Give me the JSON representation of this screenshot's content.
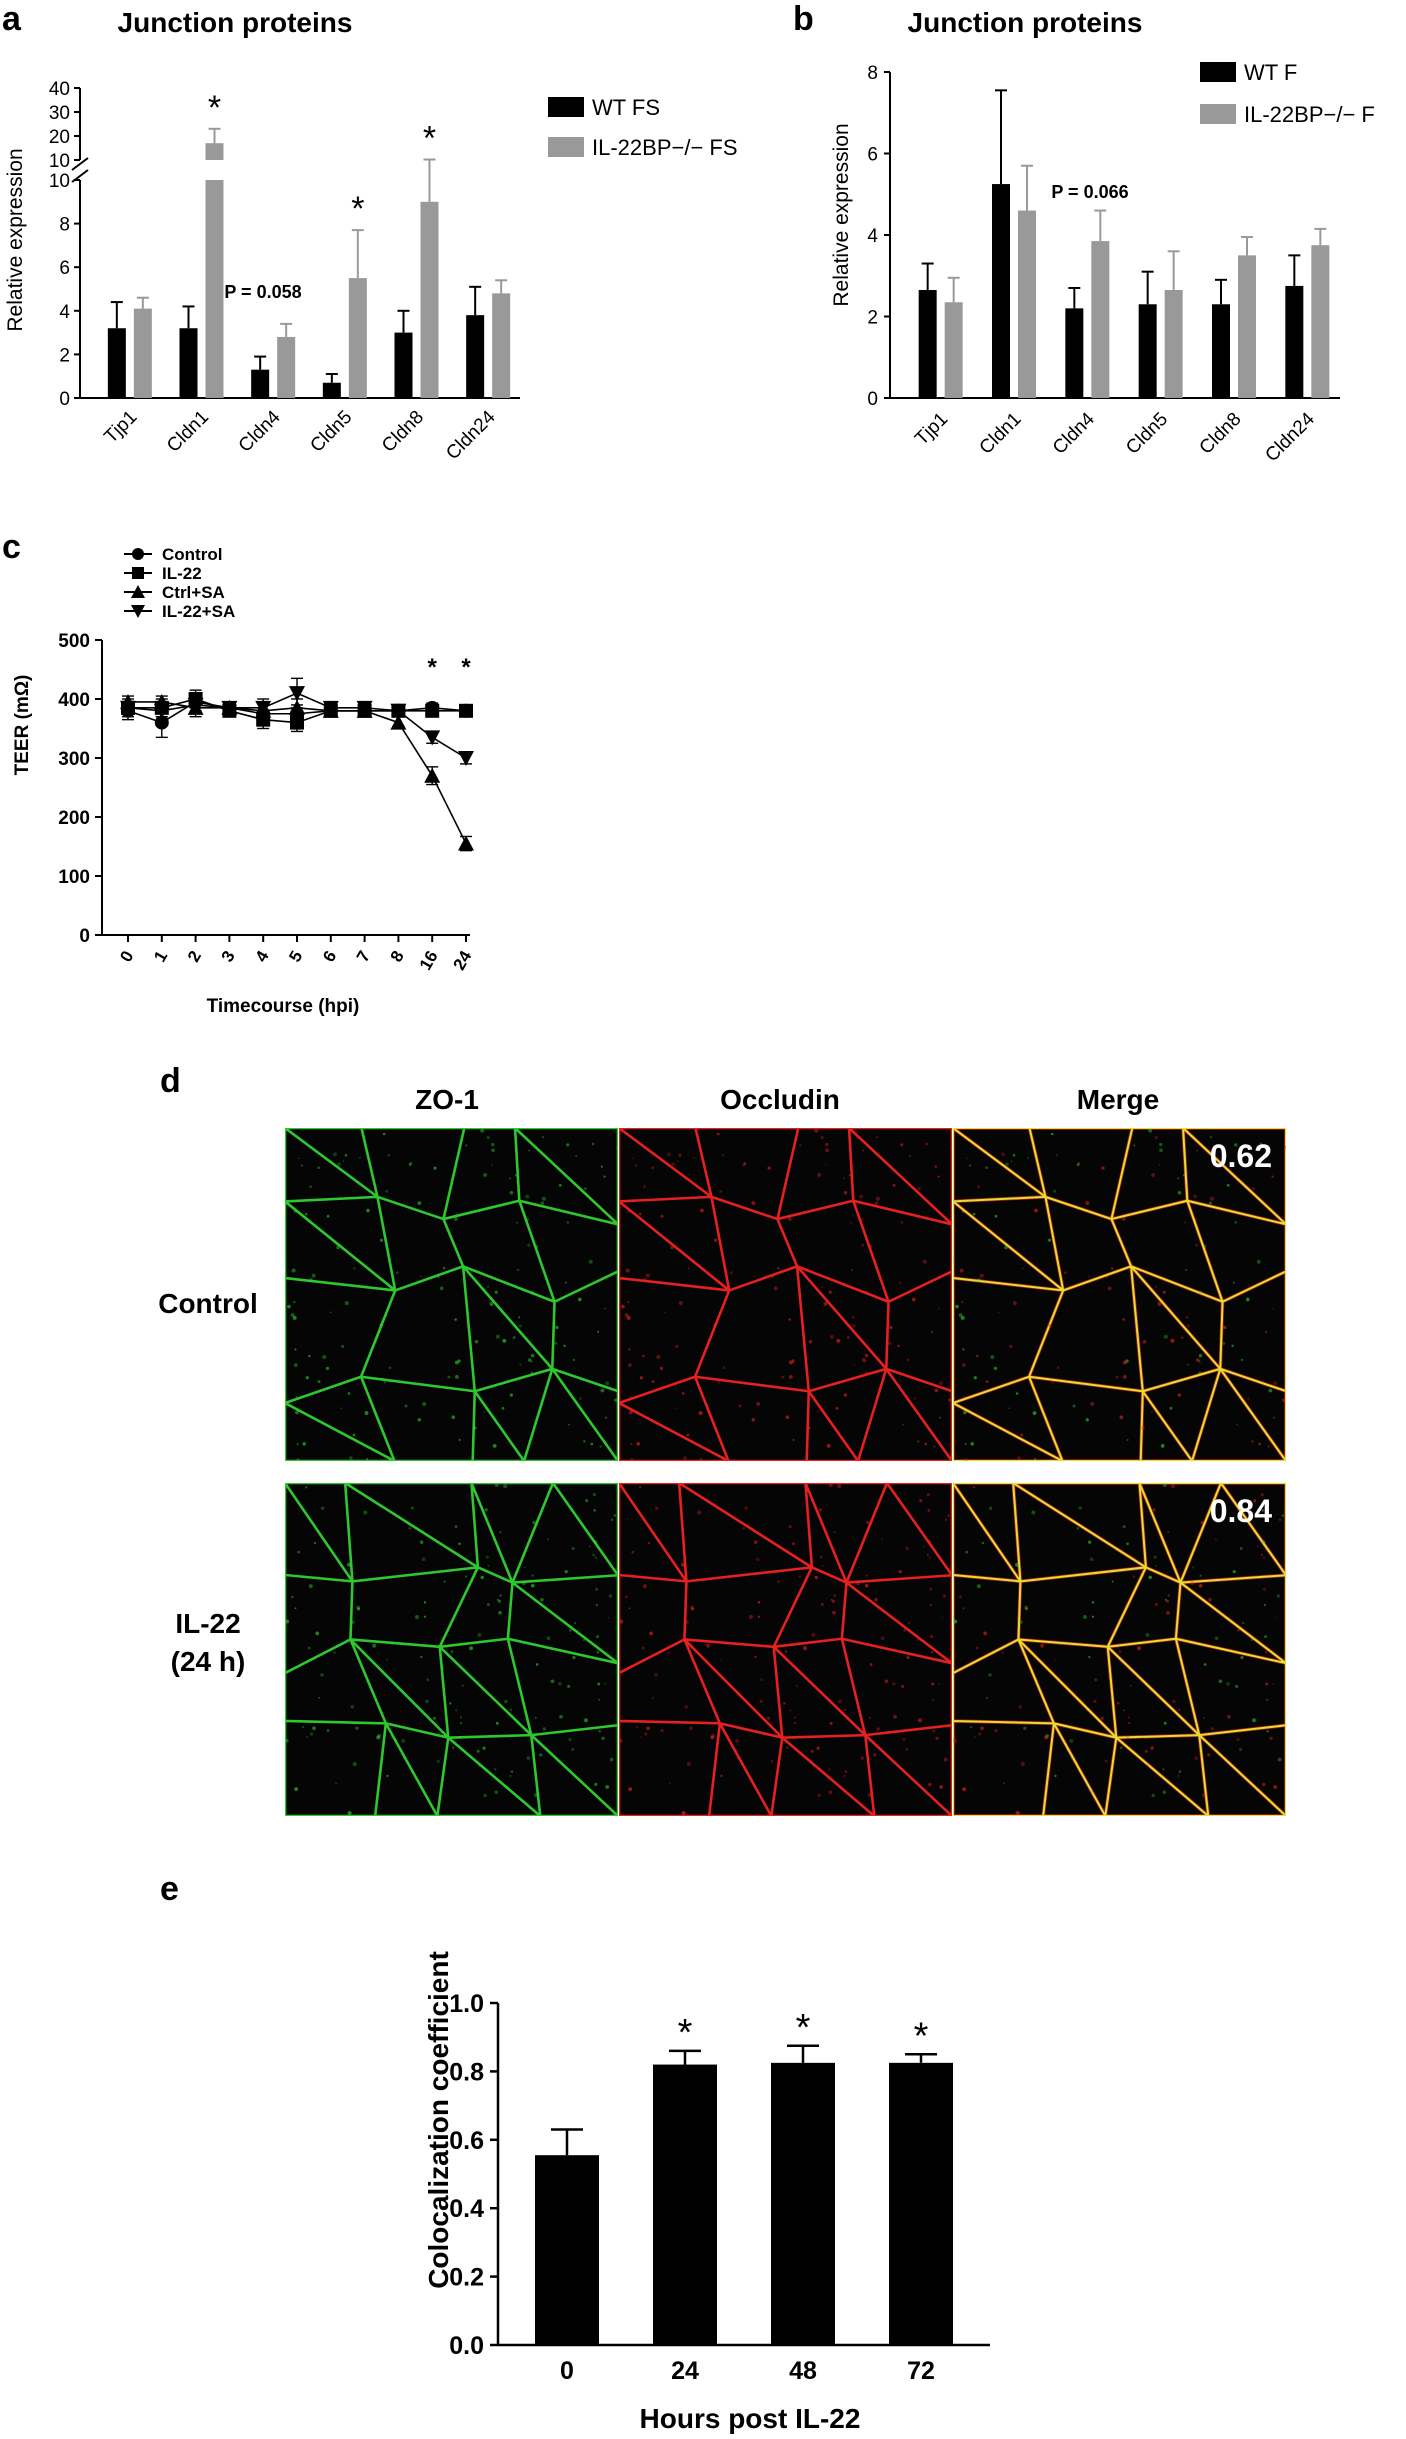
{
  "panels": {
    "a": {
      "letter": "a",
      "chart_data": {
        "type": "bar",
        "title": "Junction proteins",
        "ylabel": "Relative expression",
        "categories": [
          "Tjp1",
          "Cldn1",
          "Cldn4",
          "Cldn5",
          "Cldn8",
          "Cldn24"
        ],
        "series": [
          {
            "name": "WT FS",
            "color": "#000000",
            "values": [
              3.2,
              3.2,
              1.3,
              0.7,
              3.0,
              3.8
            ],
            "errors": [
              1.2,
              1.0,
              0.6,
              0.4,
              1.0,
              1.3
            ]
          },
          {
            "name": "IL-22BP−/− FS",
            "color": "#999999",
            "values": [
              4.1,
              17.0,
              2.8,
              5.5,
              9.0,
              4.8
            ],
            "errors": [
              0.5,
              6.0,
              0.6,
              2.2,
              1.2,
              0.6
            ]
          }
        ],
        "ylim_lower": [
          0,
          10
        ],
        "ylim_upper": [
          10,
          40
        ],
        "yticks_lower": [
          "0",
          "2",
          "4",
          "6",
          "8",
          "10"
        ],
        "yticks_upper": [
          "10",
          "20",
          "30",
          "40"
        ],
        "broken_axis": true,
        "significance": [
          "",
          "*",
          "",
          "*",
          "*",
          ""
        ],
        "annotation": {
          "category": "Cldn4",
          "text": "P = 0.058"
        },
        "legend_position": "top-right"
      }
    },
    "b": {
      "letter": "b",
      "chart_data": {
        "type": "bar",
        "title": "Junction proteins",
        "ylabel": "Relative expression",
        "categories": [
          "Tjp1",
          "Cldn1",
          "Cldn4",
          "Cldn5",
          "Cldn8",
          "Cldn24"
        ],
        "series": [
          {
            "name": "WT F",
            "color": "#000000",
            "values": [
              2.65,
              5.25,
              2.2,
              2.3,
              2.3,
              2.75
            ],
            "errors": [
              0.65,
              2.3,
              0.5,
              0.8,
              0.6,
              0.75
            ]
          },
          {
            "name": "IL-22BP−/− F",
            "color": "#999999",
            "values": [
              2.35,
              4.6,
              3.85,
              2.65,
              3.5,
              3.75
            ],
            "errors": [
              0.6,
              1.1,
              0.75,
              0.95,
              0.45,
              0.4
            ]
          }
        ],
        "ylim": [
          0,
          8
        ],
        "yticks": [
          "0",
          "2",
          "4",
          "6",
          "8"
        ],
        "annotation": {
          "category": "Cldn4",
          "text": "P = 0.066"
        },
        "legend_position": "top-right"
      }
    },
    "c": {
      "letter": "c",
      "chart_data": {
        "type": "line",
        "xlabel": "Timecourse (hpi)",
        "ylabel": "TEER (mΩ)",
        "categories": [
          "0",
          "1",
          "2",
          "3",
          "4",
          "5",
          "6",
          "7",
          "8",
          "16",
          "24"
        ],
        "ylim": [
          0,
          500
        ],
        "yticks": [
          "0",
          "100",
          "200",
          "300",
          "400",
          "500"
        ],
        "series": [
          {
            "name": "Control",
            "marker": "circle",
            "values": [
              380,
              360,
              395,
              385,
              375,
              375,
              380,
              380,
              380,
              385,
              380
            ],
            "errors": [
              15,
              25,
              15,
              10,
              20,
              15,
              10,
              10,
              10,
              8,
              10
            ]
          },
          {
            "name": "IL-22",
            "marker": "square",
            "values": [
              385,
              385,
              400,
              380,
              365,
              360,
              380,
              380,
              380,
              380,
              380
            ],
            "errors": [
              15,
              15,
              15,
              10,
              15,
              15,
              10,
              10,
              10,
              8,
              10
            ]
          },
          {
            "name": "Ctrl+SA",
            "marker": "triangle-up",
            "values": [
              395,
              395,
              385,
              385,
              380,
              385,
              380,
              380,
              360,
              270,
              155
            ],
            "errors": [
              10,
              10,
              15,
              10,
              15,
              15,
              10,
              10,
              10,
              15,
              12
            ]
          },
          {
            "name": "IL-22+SA",
            "marker": "triangle-down",
            "values": [
              385,
              380,
              390,
              385,
              385,
              410,
              385,
              385,
              380,
              335,
              300
            ],
            "errors": [
              10,
              10,
              15,
              10,
              15,
              25,
              10,
              10,
              10,
              10,
              10
            ]
          }
        ],
        "significance": [
          "",
          "",
          "",
          "",
          "",
          "",
          "",
          "",
          "",
          "*",
          "*"
        ],
        "legend_position": "top-left"
      }
    },
    "d": {
      "letter": "d",
      "column_titles": [
        "ZO-1",
        "Occludin",
        "Merge"
      ],
      "rows": [
        {
          "label_line1": "Control",
          "label_line2": "",
          "coefficient": "0.62"
        },
        {
          "label_line1": "IL-22",
          "label_line2": "(24 h)",
          "coefficient": "0.84"
        }
      ],
      "channel_colors": {
        "zo1": "#33dd33",
        "occludin": "#ff2222",
        "merge": "#ddee33"
      }
    },
    "e": {
      "letter": "e",
      "chart_data": {
        "type": "bar",
        "xlabel": "Hours post IL-22",
        "ylabel": "Colocalization coefficient",
        "categories": [
          "0",
          "24",
          "48",
          "72"
        ],
        "values": [
          0.555,
          0.82,
          0.825,
          0.825
        ],
        "errors": [
          0.075,
          0.04,
          0.05,
          0.025
        ],
        "ylim": [
          0,
          1.0
        ],
        "yticks": [
          "0.0",
          "0.2",
          "0.4",
          "0.6",
          "0.8",
          "1.0"
        ],
        "significance": [
          "",
          "*",
          "*",
          "*"
        ],
        "color": "#000000"
      }
    }
  }
}
